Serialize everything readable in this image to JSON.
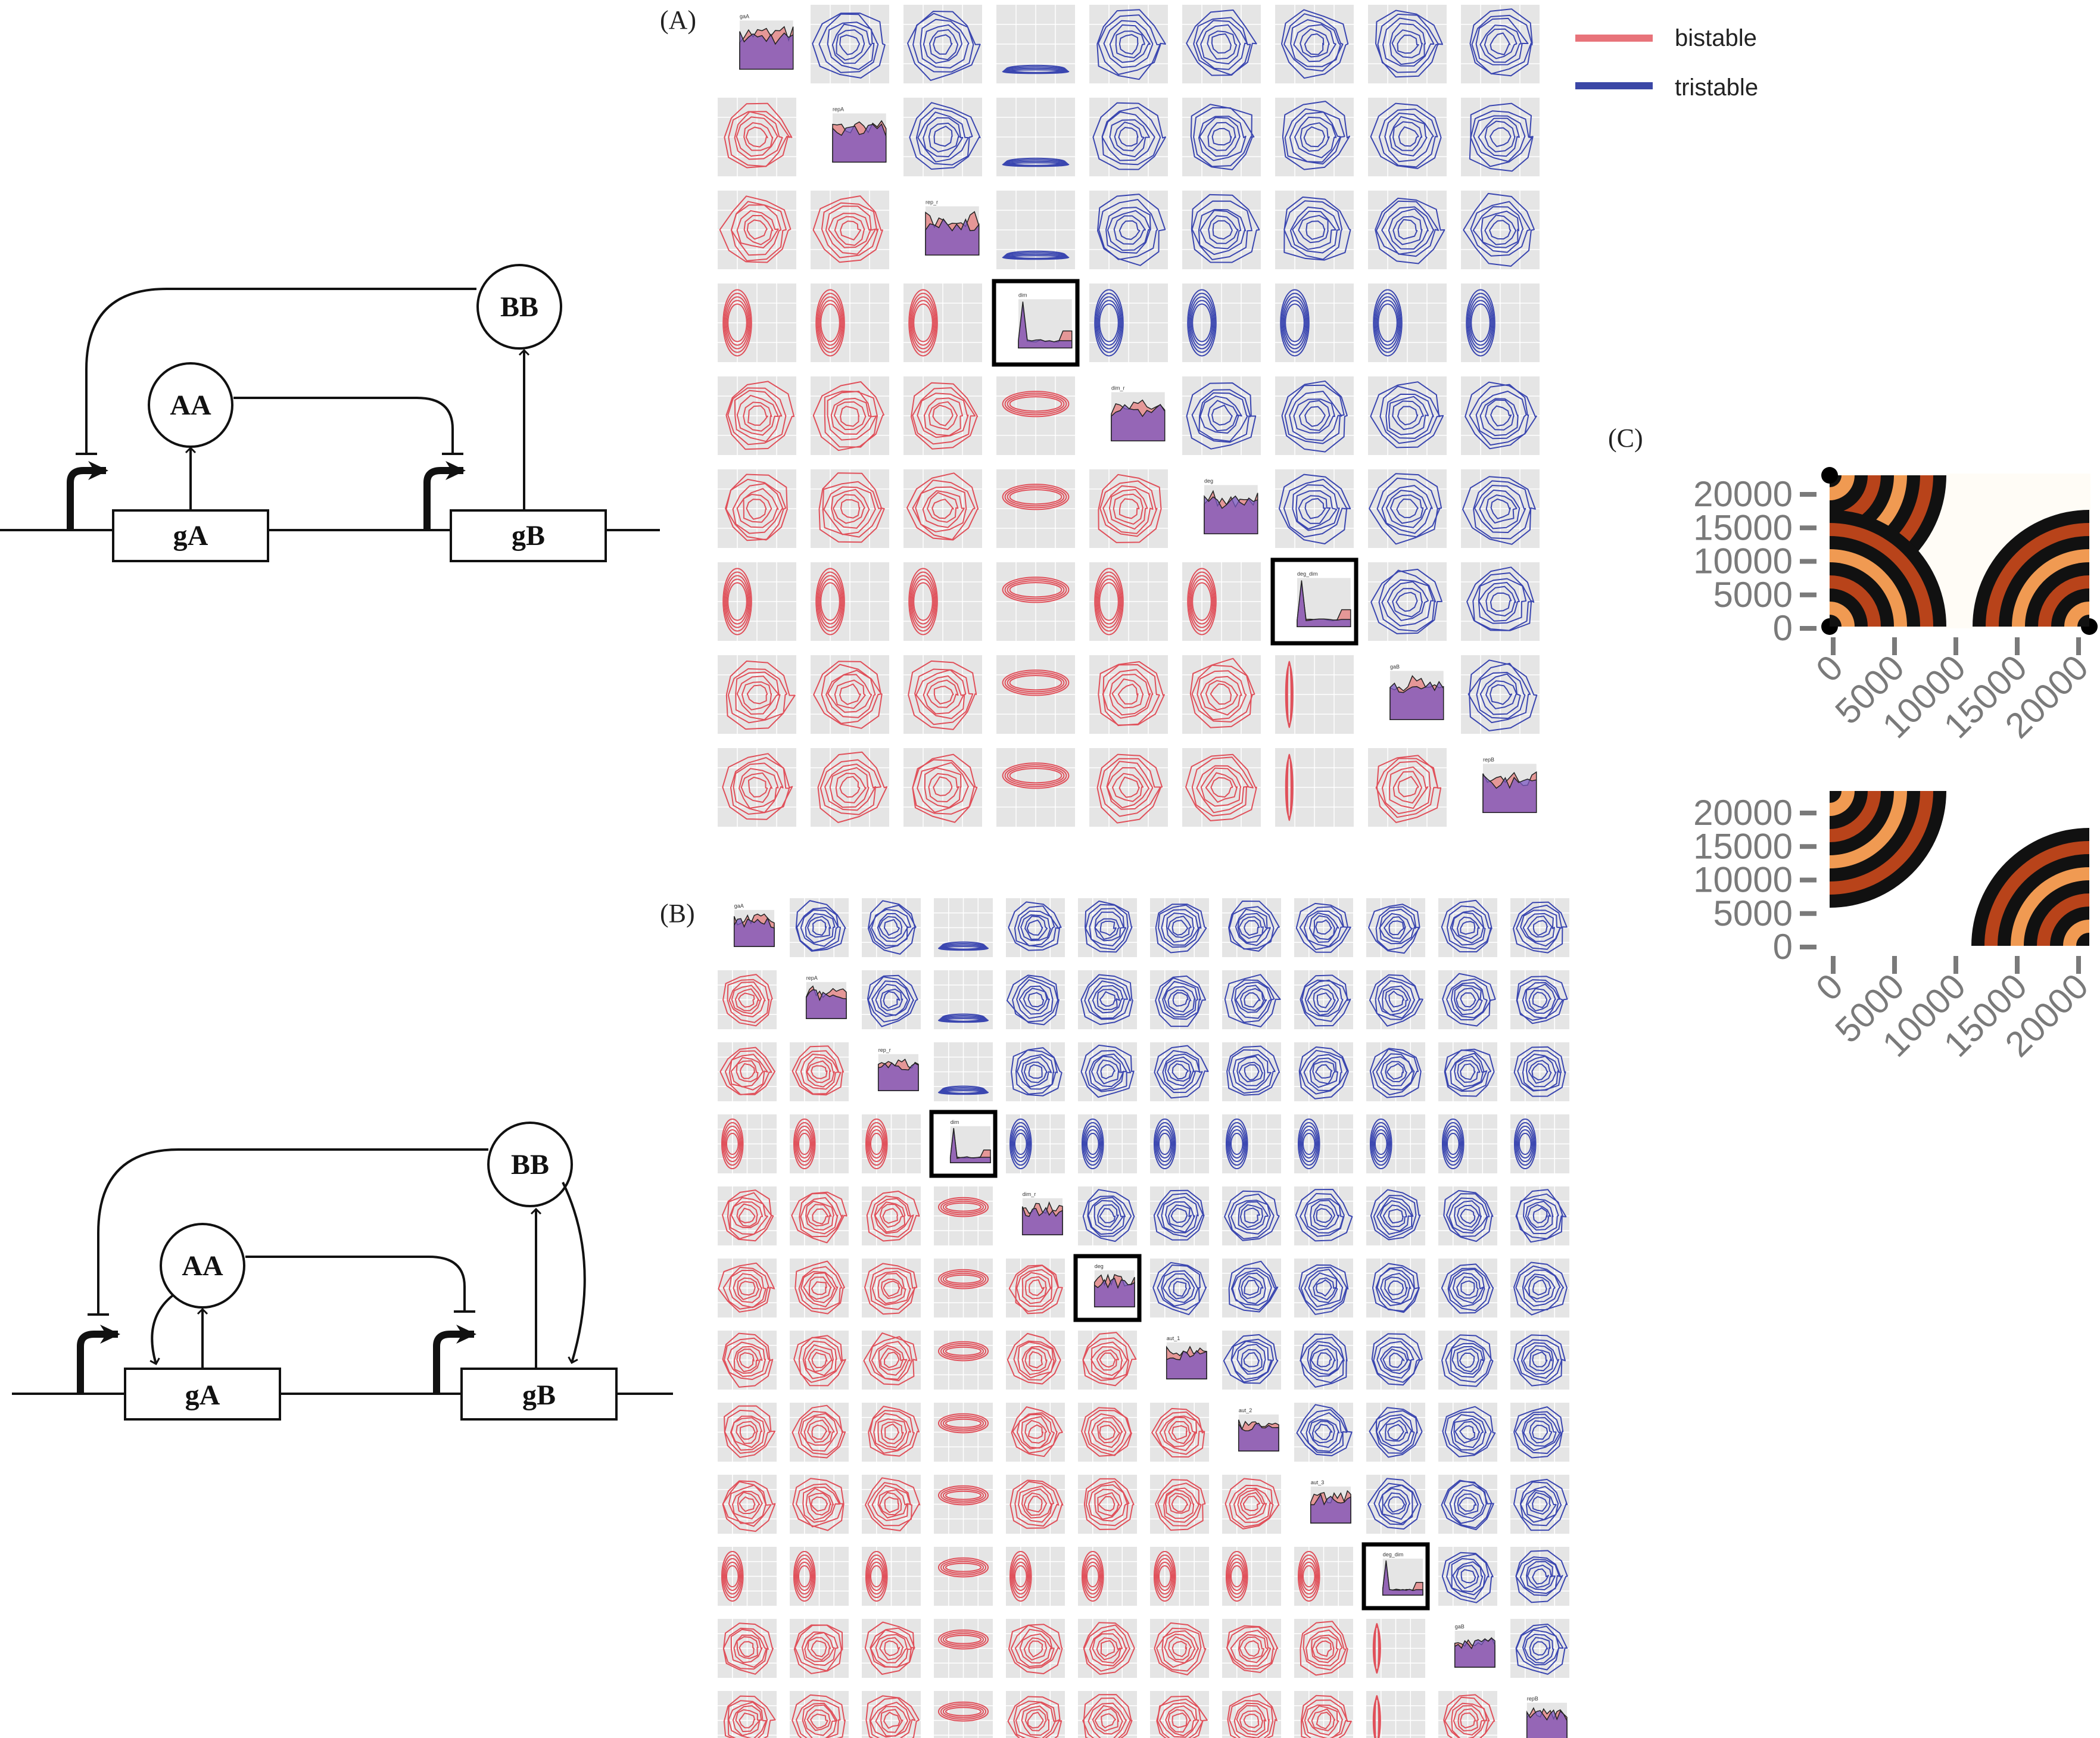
{
  "panels": {
    "A": "(A)",
    "B": "(B)",
    "C": "(C)"
  },
  "legend": {
    "items": [
      {
        "label": "bistable",
        "color": "#e8737a"
      },
      {
        "label": "tristable",
        "color": "#3b47a6"
      }
    ]
  },
  "colors": {
    "bistable": "#e0505a",
    "tristable": "#3a46b0",
    "overlap": "#8a55b8",
    "panel_bg": "#e5e5e5",
    "grid": "#ffffff"
  },
  "circuits": {
    "top": {
      "node_AA": "AA",
      "node_BB": "BB",
      "gene_A": "gA",
      "gene_B": "gB"
    },
    "bottom": {
      "node_AA": "AA",
      "node_BB": "BB",
      "gene_A": "gA",
      "gene_B": "gB"
    }
  },
  "matrixA": {
    "params": [
      "gaA",
      "repA",
      "rep_r",
      "dim",
      "dim_r",
      "deg",
      "deg_dim",
      "gaB",
      "repB"
    ],
    "highlighted": [
      "dim",
      "deg_dim"
    ]
  },
  "matrixB": {
    "params": [
      "gaA",
      "repA",
      "rep_r",
      "dim",
      "dim_r",
      "deg",
      "aut_1",
      "aut_2",
      "aut_3",
      "deg_dim",
      "gaB",
      "repB"
    ],
    "highlighted": [
      "dim",
      "deg",
      "deg_dim"
    ]
  },
  "panelC": {
    "top": {
      "yticks": [
        "20000",
        "15000",
        "10000",
        "5000",
        "0"
      ],
      "xticks": [
        "0",
        "5000",
        "10000",
        "15000",
        "20000"
      ]
    },
    "bottom": {
      "yticks": [
        "20000",
        "15000",
        "10000",
        "5000",
        "0"
      ],
      "xticks": [
        "0",
        "5000",
        "10000",
        "15000",
        "20000"
      ]
    }
  }
}
